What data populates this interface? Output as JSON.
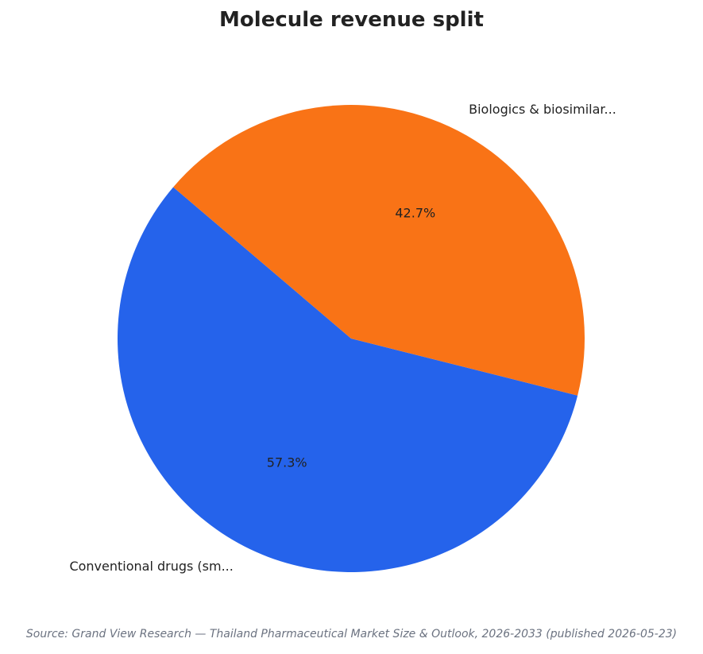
{
  "chart_data": {
    "type": "pie",
    "title": "Molecule revenue split",
    "slices": [
      {
        "label": "Conventional drugs (sm...",
        "value": 57.3,
        "percent_label": "57.3%",
        "color": "#2563eb"
      },
      {
        "label": "Biologics & biosimilar...",
        "value": 42.7,
        "percent_label": "42.7%",
        "color": "#f97316"
      }
    ],
    "start_angle_deg": 139.6,
    "direction": "counterclockwise"
  },
  "source": "Source: Grand View Research — Thailand Pharmaceutical Market Size & Outlook, 2026-2033 (published 2026-05-23)"
}
